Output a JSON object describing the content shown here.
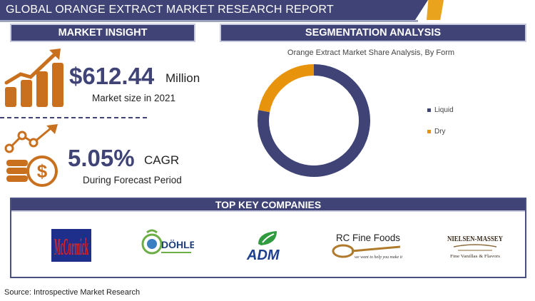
{
  "header": {
    "title": "GLOBAL ORANGE EXTRACT MARKET RESEARCH REPORT"
  },
  "market_insight": {
    "heading": "MARKET INSIGHT",
    "market_size_value": "$612.44",
    "market_size_unit": "Million",
    "market_size_label": "Market size in 2021",
    "cagr_value": "5.05%",
    "cagr_unit": "CAGR",
    "cagr_label": "During Forecast Period",
    "accent_color": "#c9701f"
  },
  "segmentation": {
    "heading": "SEGMENTATION ANALYSIS",
    "chart_title": "Orange Extract Market Share Analysis, By Form"
  },
  "chart_data": {
    "type": "pie",
    "style": "donut",
    "title": "Orange Extract Market Share Analysis, By Form",
    "categories": [
      "Liquid",
      "Dry"
    ],
    "values": [
      78,
      22
    ],
    "colors": [
      "#3f4376",
      "#e8930c"
    ],
    "legend_position": "right"
  },
  "companies": {
    "heading": "TOP KEY COMPANIES",
    "logos": [
      {
        "name": "McCormick",
        "icon": "mccormick-logo"
      },
      {
        "name": "DÖHLER",
        "icon": "dohler-logo"
      },
      {
        "name": "ADM",
        "icon": "adm-logo"
      },
      {
        "name": "RC Fine Foods",
        "tagline": "we want to help you make it",
        "icon": "rc-fine-foods-logo"
      },
      {
        "name": "NIELSEN-MASSEY",
        "tagline": "Fine Vanillas & Flavors",
        "icon": "nielsen-massey-logo"
      }
    ]
  },
  "footer": {
    "source": "Source: Introspective Market Research"
  }
}
